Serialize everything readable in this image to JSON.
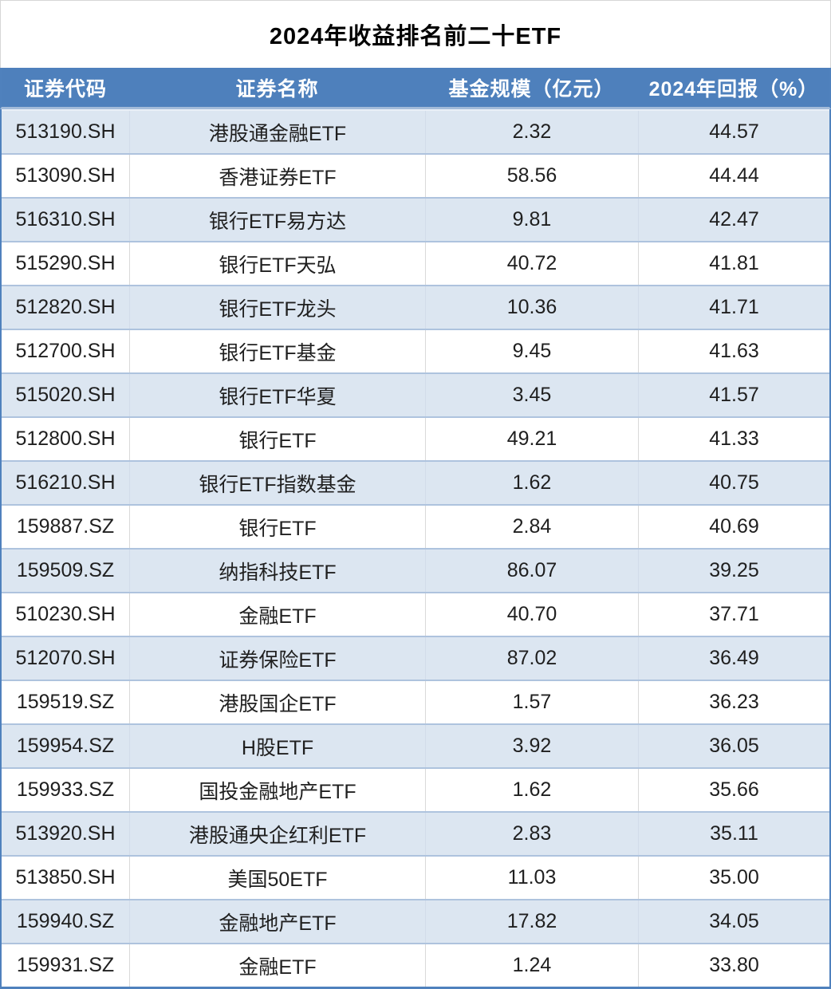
{
  "chart_data": {
    "type": "table",
    "title": "2024年收益排名前二十ETF",
    "columns": [
      "证券代码",
      "证券名称",
      "基金规模（亿元）",
      "2024年回报（%）"
    ],
    "rows": [
      [
        "513190.SH",
        "港股通金融ETF",
        "2.32",
        "44.57"
      ],
      [
        "513090.SH",
        "香港证券ETF",
        "58.56",
        "44.44"
      ],
      [
        "516310.SH",
        "银行ETF易方达",
        "9.81",
        "42.47"
      ],
      [
        "515290.SH",
        "银行ETF天弘",
        "40.72",
        "41.81"
      ],
      [
        "512820.SH",
        "银行ETF龙头",
        "10.36",
        "41.71"
      ],
      [
        "512700.SH",
        "银行ETF基金",
        "9.45",
        "41.63"
      ],
      [
        "515020.SH",
        "银行ETF华夏",
        "3.45",
        "41.57"
      ],
      [
        "512800.SH",
        "银行ETF",
        "49.21",
        "41.33"
      ],
      [
        "516210.SH",
        "银行ETF指数基金",
        "1.62",
        "40.75"
      ],
      [
        "159887.SZ",
        "银行ETF",
        "2.84",
        "40.69"
      ],
      [
        "159509.SZ",
        "纳指科技ETF",
        "86.07",
        "39.25"
      ],
      [
        "510230.SH",
        "金融ETF",
        "40.70",
        "37.71"
      ],
      [
        "512070.SH",
        "证券保险ETF",
        "87.02",
        "36.49"
      ],
      [
        "159519.SZ",
        "港股国企ETF",
        "1.57",
        "36.23"
      ],
      [
        "159954.SZ",
        "H股ETF",
        "3.92",
        "36.05"
      ],
      [
        "159933.SZ",
        "国投金融地产ETF",
        "1.62",
        "35.66"
      ],
      [
        "513920.SH",
        "港股通央企红利ETF",
        "2.83",
        "35.11"
      ],
      [
        "513850.SH",
        "美国50ETF",
        "11.03",
        "35.00"
      ],
      [
        "159940.SZ",
        "金融地产ETF",
        "17.82",
        "34.05"
      ],
      [
        "159931.SZ",
        "金融ETF",
        "1.24",
        "33.80"
      ]
    ],
    "layout": {
      "banded_rows": true,
      "legend": "none",
      "header_bg": "#4e80bc",
      "band_bg": "#dce6f1",
      "outer_border": "#4f81bd",
      "row_rule": "#aec3de",
      "column_rule": "#d9d9d9",
      "header_text_color": "#ffffff",
      "body_text_color": "#1f1f1f"
    }
  }
}
